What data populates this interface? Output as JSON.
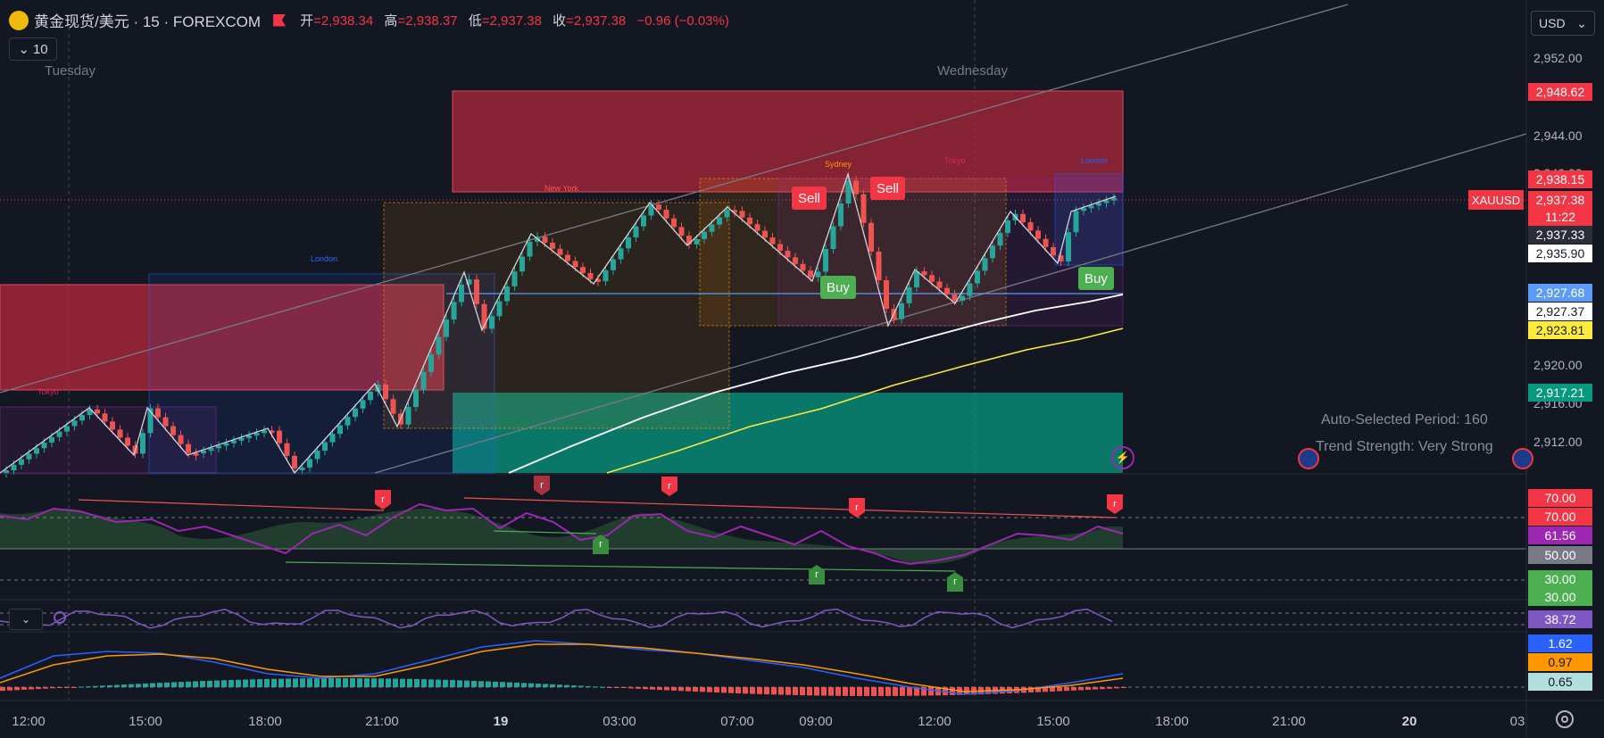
{
  "header": {
    "title": "黄金现货/美元 · 15 · FOREXCOM",
    "ohlc": [
      {
        "k": "开",
        "v": "=2,938.34"
      },
      {
        "k": "高",
        "v": "=2,938.37"
      },
      {
        "k": "低",
        "v": "=2,937.38"
      },
      {
        "k": "收",
        "v": "=2,937.38"
      }
    ],
    "change": "−0.96 (−0.03%)",
    "collapse_count": "10"
  },
  "day_labels": {
    "tuesday": "Tuesday",
    "wednesday": "Wednesday"
  },
  "currency": "USD",
  "price_axis": [
    "2,952.00",
    "2,944.00",
    "2,940.00",
    "2,920.00",
    "2,916.00",
    "2,912.00"
  ],
  "price_tags": [
    {
      "text": "2,948.62",
      "bg": "#f23645"
    },
    {
      "text": "2,938.15",
      "bg": "#f23645"
    },
    {
      "text": "2,937.38",
      "bg": "#f23645"
    },
    {
      "text": "11:22",
      "bg": "#f23645"
    },
    {
      "text": "2,937.33",
      "bg": "#2a2e39"
    },
    {
      "text": "2,935.90",
      "bg": "#ffffff"
    },
    {
      "text": "2,927.68",
      "bg": "#5b9cf6"
    },
    {
      "text": "2,927.37",
      "bg": "#ffffff"
    },
    {
      "text": "2,923.81",
      "bg": "#ffeb3b"
    },
    {
      "text": "2,917.21",
      "bg": "#089981"
    }
  ],
  "symbol_tag": "XAUUSD",
  "signals": {
    "sell": "Sell",
    "buy": "Buy"
  },
  "sessions": {
    "tokyo": "Tokyo",
    "london": "London",
    "new_york": "New York",
    "sydney": "Sydney"
  },
  "notes": {
    "period": "Auto-Selected Period: 160",
    "strength": "Trend Strength: Very Strong"
  },
  "rsi_tags": [
    {
      "text": "70.00",
      "bg": "#f23645"
    },
    {
      "text": "70.00",
      "bg": "#f23645"
    },
    {
      "text": "61.56",
      "bg": "#9c27b0"
    },
    {
      "text": "50.00",
      "bg": "#787b86"
    },
    {
      "text": "30.00",
      "bg": "#4caf50"
    },
    {
      "text": "30.00",
      "bg": "#4caf50"
    }
  ],
  "osc_tag": {
    "text": "38.72",
    "bg": "#7e57c2"
  },
  "macd_tags": [
    {
      "text": "1.62",
      "bg": "#2962ff"
    },
    {
      "text": "0.97",
      "bg": "#ff9800"
    },
    {
      "text": "0.65",
      "bg": "#b2dfdb"
    }
  ],
  "divergence_mark": "r",
  "time_axis": [
    {
      "t": "12:00",
      "bold": false
    },
    {
      "t": "15:00",
      "bold": false
    },
    {
      "t": "18:00",
      "bold": false
    },
    {
      "t": "21:00",
      "bold": false
    },
    {
      "t": "19",
      "bold": true
    },
    {
      "t": "03:00",
      "bold": false
    },
    {
      "t": "07:00",
      "bold": false
    },
    {
      "t": "09:00",
      "bold": false
    },
    {
      "t": "12:00",
      "bold": false
    },
    {
      "t": "15:00",
      "bold": false
    },
    {
      "t": "18:00",
      "bold": false
    },
    {
      "t": "21:00",
      "bold": false
    },
    {
      "t": "20",
      "bold": true
    },
    {
      "t": "03",
      "bold": false
    }
  ],
  "colors": {
    "background": "#131722",
    "up": "#26a69a",
    "down": "#ef5350",
    "supply_zone": "#b7283b",
    "demand_zone": "#089981",
    "rsi_line": "#9c27b0",
    "ma_white": "#ffffff",
    "ma_yellow": "#ffeb3b"
  }
}
